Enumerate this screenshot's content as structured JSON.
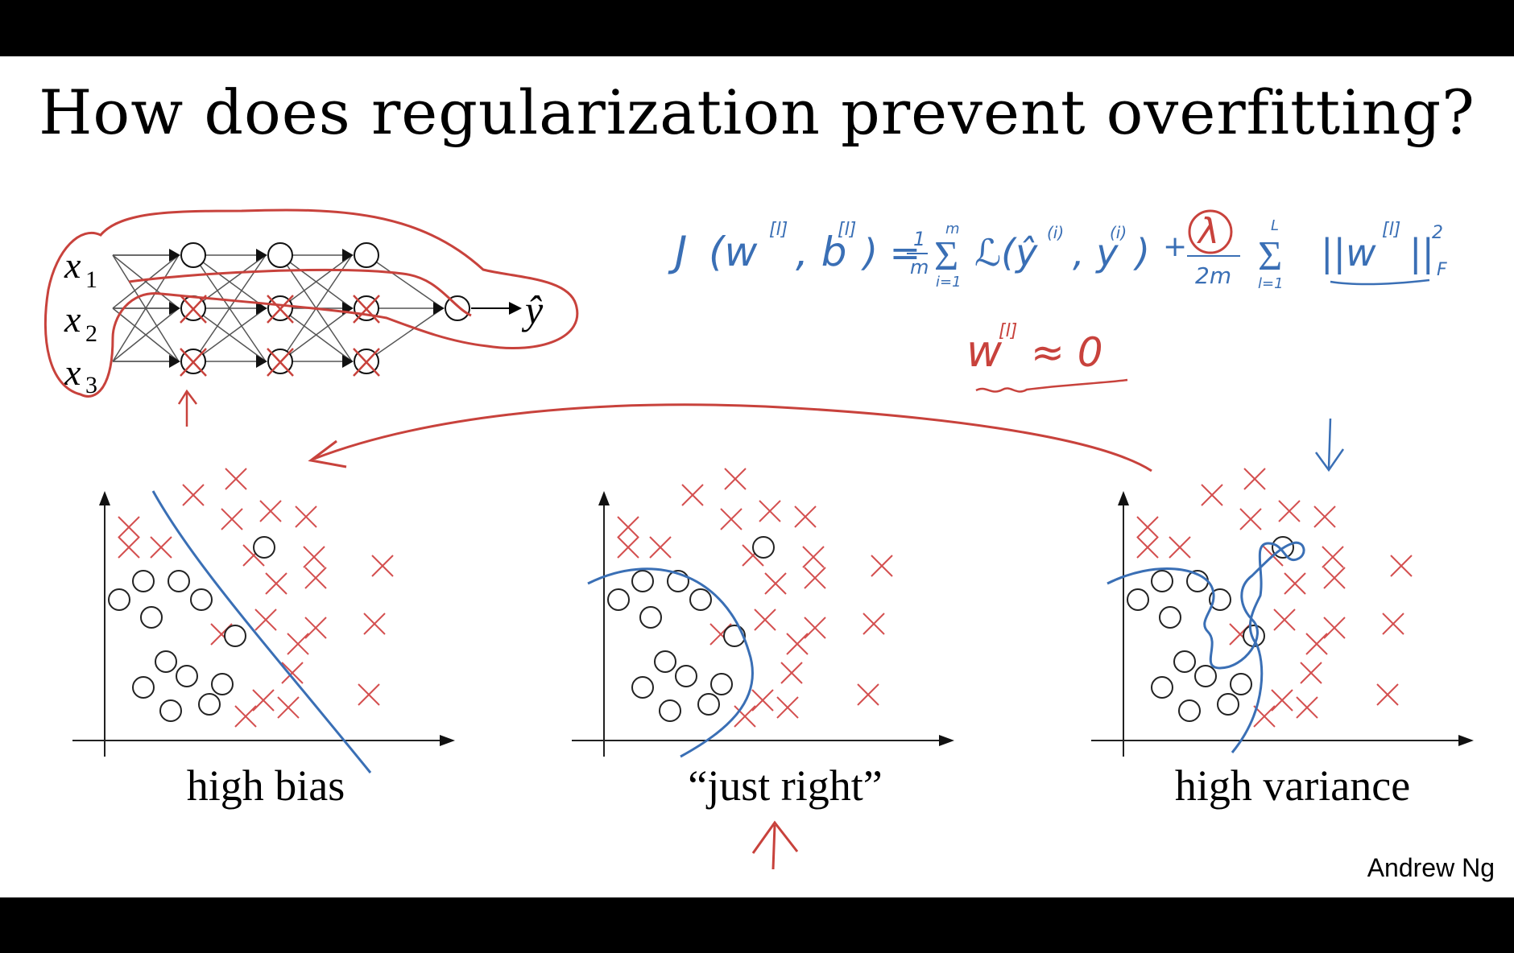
{
  "slide": {
    "title": "How does regularization prevent overfitting?",
    "author": "Andrew Ng"
  },
  "network": {
    "inputs": [
      "x",
      "x",
      "x"
    ],
    "input_subscripts": [
      "1",
      "2",
      "3"
    ],
    "output": "ŷ"
  },
  "annotations": {
    "cost_J": "J",
    "cost_args": "(w",
    "cost_sup": "[l]",
    "cost_b": ", b",
    "cost_eq": ") = ",
    "cost_frac_num": "1",
    "cost_frac_den": "m",
    "sum_sym": "Σ",
    "sum_top": "m",
    "sum_bottom": "i=1",
    "loss": "ℒ(ŷ",
    "loss_sup": "(i)",
    "loss_y": ", y",
    "loss_close": ")",
    "plus": "+",
    "lambda": "λ",
    "lambda_den": "2m",
    "sum2_top": "L",
    "sum2_bottom": "l=1",
    "norm": "||w",
    "norm_close": "||",
    "norm_sup": "2",
    "norm_sub": "F",
    "approx_w": "w",
    "approx_sup": "[l]",
    "approx": "≈ 0"
  },
  "panels": [
    {
      "label": "high bias"
    },
    {
      "label": "“just right”"
    },
    {
      "label": "high variance"
    }
  ],
  "colors": {
    "cross": "#d45050",
    "circle": "#222222",
    "blue_ink": "#3a6fb5",
    "red_ink": "#c8423c",
    "network_line": "#555555"
  }
}
